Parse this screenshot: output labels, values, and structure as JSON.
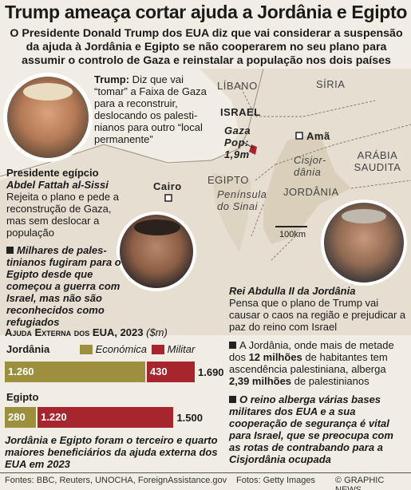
{
  "headline": "Trump ameaça cortar ajuda a Jordânia e Egipto",
  "standfirst": "O Presidente Donald Trump dos EUA diz que vai considerar a suspensão da ajuda à Jordânia e Egipto se não cooperarem no seu plano para assumir o controlo de Gaza e reinstalar a população nos dois países",
  "trump": {
    "name": "Trump:",
    "quote": " Diz que vai “tomar” a Faixa de Gaza para a reconstruir, deslocando os palesti-nianos para outro “local permanente”"
  },
  "sisi": {
    "title": "Presidente egípcio",
    "name": "Abdel Fattah al-Sissi",
    "text": "Rejeita o plano e pede a reconstrução de Gaza, mas sem deslocar a população",
    "note": "Milhares de pales-tinianos fugiram para o Egipto desde que começou a guerra com Israel, mas não são reconhecidos como refugiados"
  },
  "abdullah": {
    "name": "Rei Abdulla II da Jordânia",
    "text": "Pensa que o plano de Trump vai causar o caos na região e prejudicar a paz do reino com Israel",
    "fact_pre": "A Jordânia, onde mais de metade dos ",
    "fact_bold": "12 milhões",
    "fact_mid": " de habitantes tem ascendência palestiniana, alberga ",
    "fact_bold2": "2,39 milhões",
    "fact_post": " de palestinianos",
    "note": "O reino alberga várias bases militares dos EUA e a sua cooperação de segurança é vital para Israel, que se preocupa com as rotas de contrabando para a Cisjordânia ocupada"
  },
  "map": {
    "labels": {
      "libano": "LÍBANO",
      "siria": "SÍRIA",
      "israel": "ISRAEL",
      "ama": "Amã",
      "gaza": "Gaza",
      "gaza_pop": "Pop:",
      "gaza_pop_value": "1,9m",
      "cisjordania": "Cisjor-dânia",
      "arabia": "ARÁBIA SAUDITA",
      "cairo": "Cairo",
      "egipto": "EGIPTO",
      "sinai": "Península do Sinai",
      "jordania": "JORDÂNIA",
      "scale": "100km"
    },
    "colors": {
      "land": "#e6dfd1",
      "highlight": "#d6cdba",
      "sea": "#f1ede4",
      "border": "#8a7f6a"
    }
  },
  "chart_data": {
    "type": "bar",
    "title": "Ajuda Externa dos EUA, 2023",
    "unit": "($m)",
    "series": [
      {
        "name": "Económica",
        "color": "#9c8f3d"
      },
      {
        "name": "Militar",
        "color": "#a7262e"
      }
    ],
    "categories": [
      "Jordânia",
      "Egipto"
    ],
    "values": {
      "Jordânia": {
        "Económica": 1260,
        "Militar": 430,
        "total": 1690
      },
      "Egipto": {
        "Económica": 280,
        "Militar": 1220,
        "total": 1500
      }
    },
    "labels": {
      "Jordânia": {
        "eco": "1.260",
        "mil": "430",
        "total": "1.690"
      },
      "Egipto": {
        "eco": "280",
        "mil": "1.220",
        "total": "1.500"
      }
    },
    "max": 1690
  },
  "chart_caption": "Jordânia e Egipto foram o terceiro e quarto maiores beneficiários da ajuda externa dos EUA em 2023",
  "footer": {
    "sources": "Fontes: BBC, Reuters, UNOCHA, ForeignAssistance.gov",
    "photos": "Fotos: Getty Images",
    "credit": "© GRAPHIC NEWS"
  }
}
